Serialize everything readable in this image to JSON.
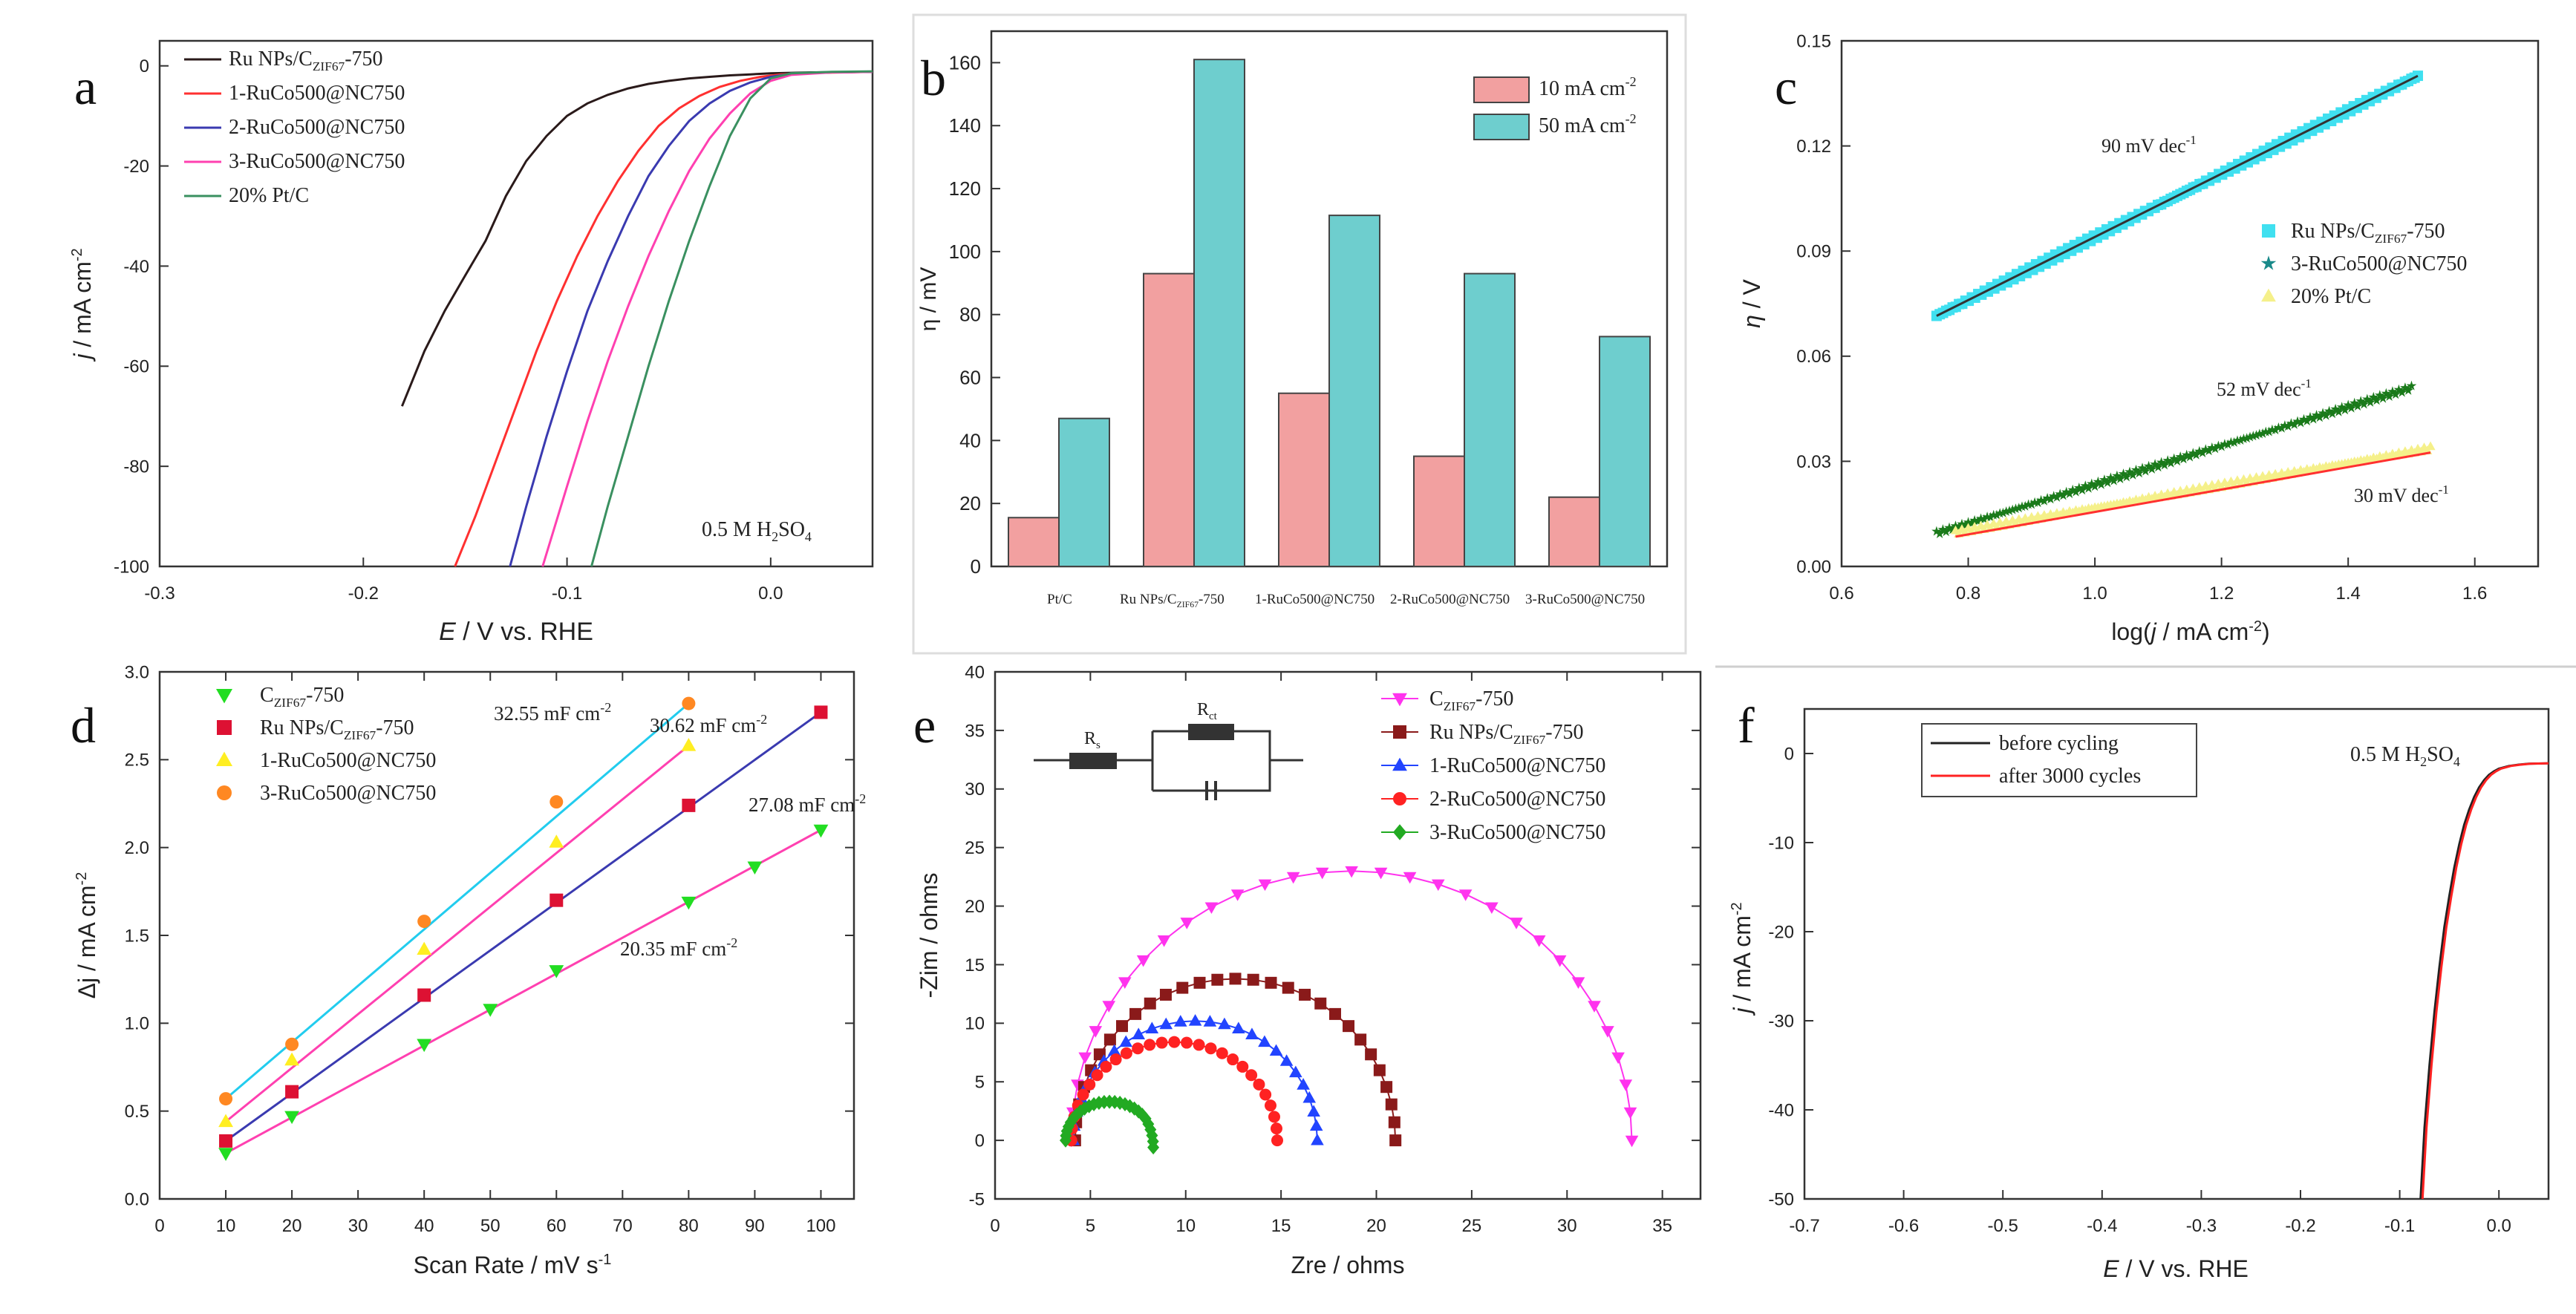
{
  "chart_data": [
    {
      "id": "a",
      "letter": "a",
      "type": "line",
      "title": "",
      "xlabel_italic": "E",
      "xlabel_rest": " / V vs. RHE",
      "ylabel_italic": "j",
      "ylabel_rest": " / mA cm",
      "ylabel_sup": "-2",
      "xlim": [
        -0.3,
        0.05
      ],
      "ylim": [
        -100,
        5
      ],
      "xticks": [
        -0.3,
        -0.2,
        -0.1,
        0.0
      ],
      "xtick_labels": [
        "-0.3",
        "-0.2",
        "-0.1",
        "0.0"
      ],
      "yticks": [
        0,
        -20,
        -40,
        -60,
        -80,
        -100
      ],
      "ytick_labels": [
        "0",
        "-20",
        "-40",
        "-60",
        "-80",
        "-100"
      ],
      "annotation_main": "0.5 M H",
      "annotation_sub": "2",
      "annotation_tail": "SO",
      "annotation_sub2": "4",
      "legend": [
        {
          "main": "Ru NPs/C",
          "sub": "ZIF67",
          "tail": "-750",
          "color": "#2a1a1a"
        },
        {
          "main": "1-RuCo500@NC750",
          "sub": "",
          "tail": "",
          "color": "#ff3030"
        },
        {
          "main": "2-RuCo500@NC750",
          "sub": "",
          "tail": "",
          "color": "#3a3ab0"
        },
        {
          "main": "3-RuCo500@NC750",
          "sub": "",
          "tail": "",
          "color": "#ff40b0"
        },
        {
          "main": "20% Pt/C",
          "sub": "",
          "tail": "",
          "color": "#3a9060"
        }
      ],
      "series": [
        {
          "name": "Ru NPs/C_ZIF67-750",
          "color": "#2a1a1a",
          "x": [
            -0.181,
            -0.17,
            -0.16,
            -0.15,
            -0.14,
            -0.13,
            -0.12,
            -0.11,
            -0.1,
            -0.09,
            -0.08,
            -0.07,
            -0.06,
            -0.05,
            -0.04,
            -0.03,
            -0.02,
            -0.01,
            0.0,
            0.02,
            0.05
          ],
          "y": [
            -68,
            -58,
            -50,
            -42,
            -34,
            -26,
            -19,
            -14,
            -10,
            -7.5,
            -5.8,
            -4.5,
            -3.6,
            -3.0,
            -2.5,
            -2.2,
            -1.9,
            -1.7,
            -1.5,
            -1.3,
            -1.2
          ]
        },
        {
          "name": "1-RuCo500@NC750",
          "color": "#ff3030",
          "x": [
            -0.155,
            -0.145,
            -0.135,
            -0.125,
            -0.115,
            -0.105,
            -0.095,
            -0.085,
            -0.075,
            -0.065,
            -0.055,
            -0.045,
            -0.035,
            -0.025,
            -0.015,
            -0.005,
            0.005,
            0.02,
            0.05
          ],
          "y": [
            -100,
            -90,
            -79,
            -68,
            -57,
            -47,
            -38,
            -30,
            -23,
            -17,
            -12,
            -8.5,
            -6,
            -4.2,
            -3.0,
            -2.2,
            -1.7,
            -1.4,
            -1.2
          ]
        },
        {
          "name": "2-RuCo500@NC750",
          "color": "#3a3ab0",
          "x": [
            -0.128,
            -0.12,
            -0.11,
            -0.1,
            -0.09,
            -0.08,
            -0.07,
            -0.06,
            -0.05,
            -0.04,
            -0.03,
            -0.02,
            -0.01,
            0.0,
            0.01,
            0.03,
            0.05
          ],
          "y": [
            -100,
            -88,
            -74,
            -61,
            -49,
            -39,
            -30,
            -22,
            -16,
            -11,
            -7.5,
            -5,
            -3.3,
            -2.2,
            -1.6,
            -1.3,
            -1.2
          ]
        },
        {
          "name": "3-RuCo500@NC750",
          "color": "#ff40b0",
          "x": [
            -0.112,
            -0.1,
            -0.09,
            -0.08,
            -0.07,
            -0.06,
            -0.05,
            -0.04,
            -0.03,
            -0.02,
            -0.01,
            0.0,
            0.01,
            0.03,
            0.05
          ],
          "y": [
            -100,
            -84,
            -71,
            -59,
            -48,
            -38,
            -29,
            -21,
            -14.5,
            -9.5,
            -5.5,
            -3.0,
            -1.8,
            -1.3,
            -1.2
          ]
        },
        {
          "name": "20% Pt/C",
          "color": "#3a9060",
          "x": [
            -0.088,
            -0.08,
            -0.07,
            -0.06,
            -0.05,
            -0.04,
            -0.03,
            -0.02,
            -0.01,
            0.0,
            0.01,
            0.03,
            0.05
          ],
          "y": [
            -100,
            -88,
            -74,
            -60,
            -47,
            -35,
            -24,
            -14,
            -6.5,
            -2.5,
            -1.5,
            -1.2,
            -1.1
          ]
        }
      ]
    },
    {
      "id": "b",
      "letter": "b",
      "type": "bar",
      "ylabel": "η / mV",
      "ylim": [
        0,
        170
      ],
      "yticks": [
        0,
        20,
        40,
        60,
        80,
        100,
        120,
        140,
        160
      ],
      "ytick_labels": [
        "0",
        "20",
        "40",
        "60",
        "80",
        "100",
        "120",
        "140",
        "160"
      ],
      "categories": [
        {
          "main": "Pt/C",
          "sub": "",
          "tail": ""
        },
        {
          "main": "Ru NPs/C",
          "sub": "ZIF67",
          "tail": "-750"
        },
        {
          "main": "1-RuCo500@NC750",
          "sub": "",
          "tail": ""
        },
        {
          "main": "2-RuCo500@NC750",
          "sub": "",
          "tail": ""
        },
        {
          "main": "3-RuCo500@NC750",
          "sub": "",
          "tail": ""
        }
      ],
      "series": [
        {
          "name": "10 mA cm",
          "sup": "-2",
          "color": "#f2a0a0",
          "values": [
            15.5,
            93,
            55,
            35,
            22
          ]
        },
        {
          "name": "50 mA cm",
          "sup": "-2",
          "color": "#6ecece",
          "values": [
            47,
            161,
            111.5,
            93,
            73
          ]
        }
      ]
    },
    {
      "id": "c",
      "letter": "c",
      "type": "scatter",
      "xlabel": "log(",
      "xlabel_italic": "j",
      "xlabel_rest": " / mA cm",
      "xlabel_sup": "-2",
      "xlabel_close": ")",
      "ylabel_italic": "η",
      "ylabel_rest": " / V",
      "xlim": [
        0.6,
        1.7
      ],
      "ylim": [
        0,
        0.15
      ],
      "xticks": [
        0.6,
        0.8,
        1.0,
        1.2,
        1.4,
        1.6
      ],
      "xtick_labels": [
        "0.6",
        "0.8",
        "1.0",
        "1.2",
        "1.4",
        "1.6"
      ],
      "yticks": [
        0.0,
        0.03,
        0.06,
        0.09,
        0.12,
        0.15
      ],
      "ytick_labels": [
        "0.00",
        "0.03",
        "0.06",
        "0.09",
        "0.12",
        "0.15"
      ],
      "legend": [
        {
          "main": "Ru NPs/C",
          "sub": "ZIF67",
          "tail": "-750",
          "color": "#40e0f0",
          "marker": "square"
        },
        {
          "main": "3-RuCo500@NC750",
          "sub": "",
          "tail": "",
          "color": "#1a8a8a",
          "marker": "star"
        },
        {
          "main": "20% Pt/C",
          "sub": "",
          "tail": "",
          "color": "#f5f08a",
          "marker": "triangle"
        }
      ],
      "fits": [
        {
          "label": "90 mV dec",
          "sup": "-1",
          "x0": 0.75,
          "x1": 1.51,
          "y0": 0.0715,
          "y1": 0.14,
          "color": "#40e0f0",
          "line": "#333333"
        },
        {
          "label": "52 mV dec",
          "sup": "-1",
          "x0": 0.75,
          "x1": 1.5,
          "y0": 0.0095,
          "y1": 0.051,
          "color": "#1a7a1a",
          "line": "#1a7a1a"
        },
        {
          "label": "30 mV dec",
          "sup": "-1",
          "x0": 0.78,
          "x1": 1.53,
          "y0": 0.0085,
          "y1": 0.0325,
          "color": "#f5f08a",
          "line": "#ff3030"
        }
      ]
    },
    {
      "id": "d",
      "letter": "d",
      "type": "scatter",
      "xlabel": "Scan Rate / mV s",
      "xlabel_sup": "-1",
      "ylabel": "Δj / mA cm",
      "ylabel_sup": "-2",
      "xlim": [
        0,
        105
      ],
      "ylim": [
        0,
        3.0
      ],
      "xticks": [
        0,
        10,
        20,
        30,
        40,
        50,
        60,
        70,
        80,
        90,
        100
      ],
      "xtick_labels": [
        "0",
        "10",
        "20",
        "30",
        "40",
        "50",
        "60",
        "70",
        "80",
        "90",
        "100"
      ],
      "yticks": [
        0.0,
        0.5,
        1.0,
        1.5,
        2.0,
        2.5,
        3.0
      ],
      "ytick_labels": [
        "0.0",
        "0.5",
        "1.0",
        "1.5",
        "2.0",
        "2.5",
        "3.0"
      ],
      "series": [
        {
          "main": "C",
          "sub": "ZIF67",
          "tail": "-750",
          "color": "#22dd22",
          "line": "#ff40b0",
          "marker": "tri-down",
          "x": [
            10,
            20,
            40,
            50,
            60,
            80,
            90,
            100
          ],
          "y": [
            0.26,
            0.47,
            0.88,
            1.08,
            1.3,
            1.69,
            1.89,
            2.1
          ],
          "slope_label": "20.35 mF cm",
          "sup": "-2"
        },
        {
          "main": "Ru NPs/C",
          "sub": "ZIF67",
          "tail": "-750",
          "color": "#dd1133",
          "line": "#3a3ab0",
          "marker": "square",
          "x": [
            10,
            20,
            40,
            60,
            80,
            100
          ],
          "y": [
            0.33,
            0.61,
            1.16,
            1.7,
            2.24,
            2.77
          ],
          "slope_label": "27.08 mF cm",
          "sup": "-2"
        },
        {
          "main": "1-RuCo500@NC750",
          "sub": "",
          "tail": "",
          "color": "#ffee22",
          "line": "#ff40b0",
          "marker": "triangle",
          "x": [
            10,
            20,
            40,
            60,
            80
          ],
          "y": [
            0.44,
            0.79,
            1.42,
            2.03,
            2.58
          ],
          "slope_label": "30.62 mF cm",
          "sup": "-2"
        },
        {
          "main": "3-RuCo500@NC750",
          "sub": "",
          "tail": "",
          "color": "#ff8822",
          "line": "#22ccee",
          "marker": "circle",
          "x": [
            10,
            20,
            40,
            60,
            80
          ],
          "y": [
            0.57,
            0.88,
            1.58,
            2.26,
            2.82
          ],
          "slope_label": "32.55 mF cm",
          "sup": "-2"
        }
      ]
    },
    {
      "id": "e",
      "letter": "e",
      "type": "scatter",
      "xlabel": "Zre / ohms",
      "ylabel": "-Zim / ohms",
      "xlim": [
        0,
        37
      ],
      "ylim": [
        -5,
        40
      ],
      "xticks": [
        0,
        5,
        10,
        15,
        20,
        25,
        30,
        35
      ],
      "xtick_labels": [
        "0",
        "5",
        "10",
        "15",
        "20",
        "25",
        "30",
        "35"
      ],
      "yticks": [
        -5,
        0,
        5,
        10,
        15,
        20,
        25,
        30,
        35,
        40
      ],
      "ytick_labels": [
        "-5",
        "0",
        "5",
        "10",
        "15",
        "20",
        "25",
        "30",
        "35",
        "40"
      ],
      "circuit_labels": [
        "R",
        "s",
        "R",
        "ct"
      ],
      "series": [
        {
          "main": "C",
          "sub": "ZIF67",
          "tail": "-750",
          "color": "#ff33ee",
          "marker": "tri-down",
          "start": 4.0,
          "end": 33.4,
          "peak": 23.0
        },
        {
          "main": "Ru NPs/C",
          "sub": "ZIF67",
          "tail": "-750",
          "color": "#8a1a1a",
          "marker": "square",
          "start": 4.2,
          "end": 21.0,
          "peak": 13.8
        },
        {
          "main": "1-RuCo500@NC750",
          "sub": "",
          "tail": "",
          "color": "#2244ff",
          "marker": "triangle",
          "start": 4.1,
          "end": 16.9,
          "peak": 10.2
        },
        {
          "main": "2-RuCo500@NC750",
          "sub": "",
          "tail": "",
          "color": "#ff2222",
          "marker": "circle",
          "start": 4.0,
          "end": 14.8,
          "peak": 8.4
        },
        {
          "main": "3-RuCo500@NC750",
          "sub": "",
          "tail": "",
          "color": "#22aa22",
          "marker": "diamond",
          "start": 3.7,
          "end": 8.3,
          "peak": 3.3
        }
      ]
    },
    {
      "id": "f",
      "letter": "f",
      "type": "line",
      "xlabel_italic": "E",
      "xlabel_rest": " / V vs. RHE",
      "ylabel_italic": "j",
      "ylabel_rest": " / mA cm",
      "ylabel_sup": "-2",
      "xlim": [
        -0.7,
        0.05
      ],
      "ylim": [
        -50,
        5
      ],
      "xticks": [
        -0.7,
        -0.6,
        -0.5,
        -0.4,
        -0.3,
        -0.2,
        -0.1,
        0.0
      ],
      "xtick_labels": [
        "-0.7",
        "-0.6",
        "-0.5",
        "-0.4",
        "-0.3",
        "-0.2",
        "-0.1",
        "0.0"
      ],
      "yticks": [
        0,
        -10,
        -20,
        -30,
        -40,
        -50
      ],
      "ytick_labels": [
        "0",
        "-10",
        "-20",
        "-30",
        "-40",
        "-50"
      ],
      "annotation_main": "0.5 M H",
      "annotation_sub": "2",
      "annotation_tail": "SO",
      "annotation_sub2": "4",
      "series": [
        {
          "name": "before cycling",
          "color": "#222222",
          "x": [
            -0.079,
            -0.075,
            -0.07,
            -0.065,
            -0.06,
            -0.055,
            -0.05,
            -0.045,
            -0.04,
            -0.035,
            -0.03,
            -0.025,
            -0.02,
            -0.015,
            -0.01,
            -0.005,
            0.0,
            0.01,
            0.02,
            0.03,
            0.05
          ],
          "y": [
            -50,
            -42,
            -35,
            -29,
            -24,
            -19.5,
            -16,
            -12.8,
            -10.2,
            -8.0,
            -6.3,
            -4.9,
            -3.8,
            -3.0,
            -2.4,
            -2.0,
            -1.7,
            -1.4,
            -1.25,
            -1.15,
            -1.1
          ]
        },
        {
          "name": "after 3000 cycles",
          "color": "#ff2222",
          "x": [
            -0.077,
            -0.073,
            -0.068,
            -0.063,
            -0.058,
            -0.053,
            -0.048,
            -0.043,
            -0.038,
            -0.033,
            -0.028,
            -0.023,
            -0.018,
            -0.013,
            -0.008,
            -0.003,
            0.002,
            0.012,
            0.022,
            0.032,
            0.05
          ],
          "y": [
            -50,
            -42,
            -35,
            -29,
            -24,
            -19.5,
            -16,
            -12.8,
            -10.2,
            -8.0,
            -6.3,
            -4.9,
            -3.8,
            -3.0,
            -2.4,
            -2.0,
            -1.7,
            -1.4,
            -1.25,
            -1.15,
            -1.1
          ]
        }
      ]
    }
  ]
}
